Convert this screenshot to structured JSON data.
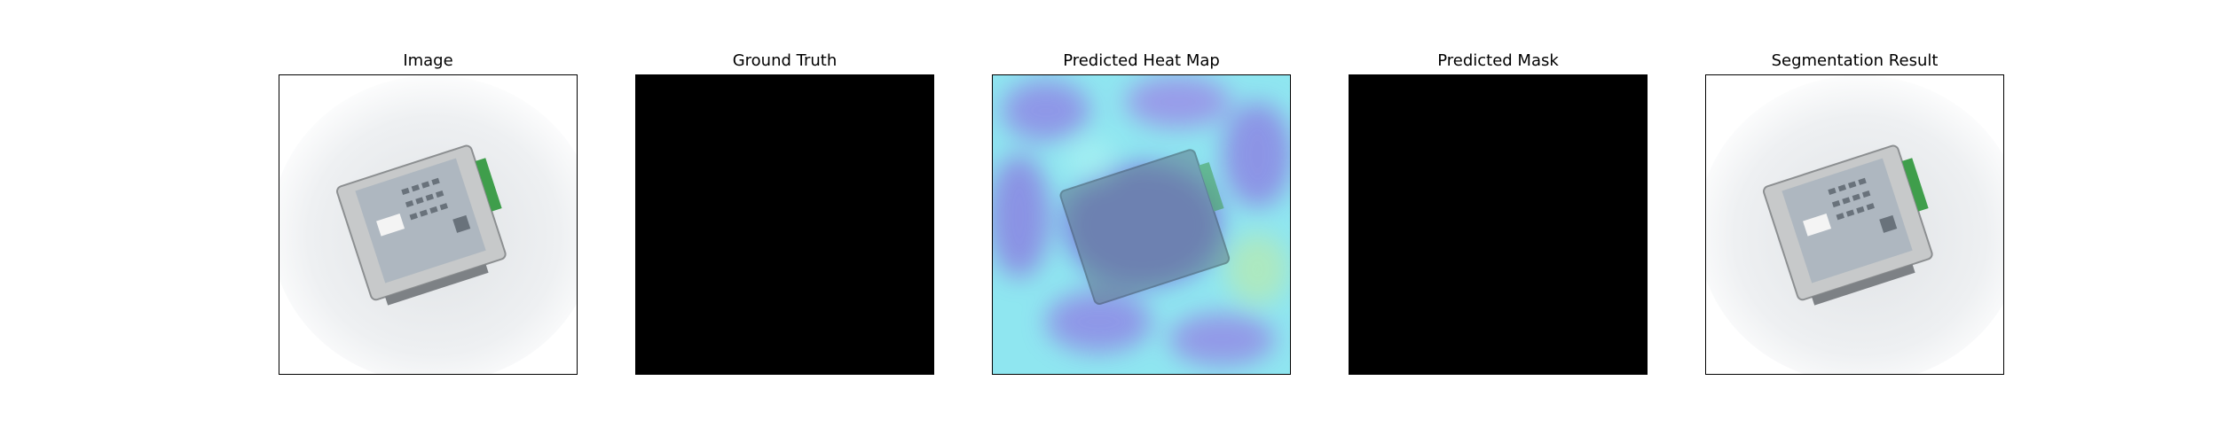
{
  "figure": {
    "panels": [
      {
        "id": "image",
        "title": "Image"
      },
      {
        "id": "ground_truth",
        "title": "Ground Truth"
      },
      {
        "id": "heat_map",
        "title": "Predicted Heat Map"
      },
      {
        "id": "predicted_mask",
        "title": "Predicted Mask"
      },
      {
        "id": "segmentation",
        "title": "Segmentation Result"
      }
    ]
  },
  "colors": {
    "mask": "#000000",
    "heat_low": "#88e8f0",
    "heat_high": "#7a6ee0",
    "device_body": "#b9bcbd",
    "connector": "#3f9e4b",
    "background_glow": "#eef0f2"
  }
}
